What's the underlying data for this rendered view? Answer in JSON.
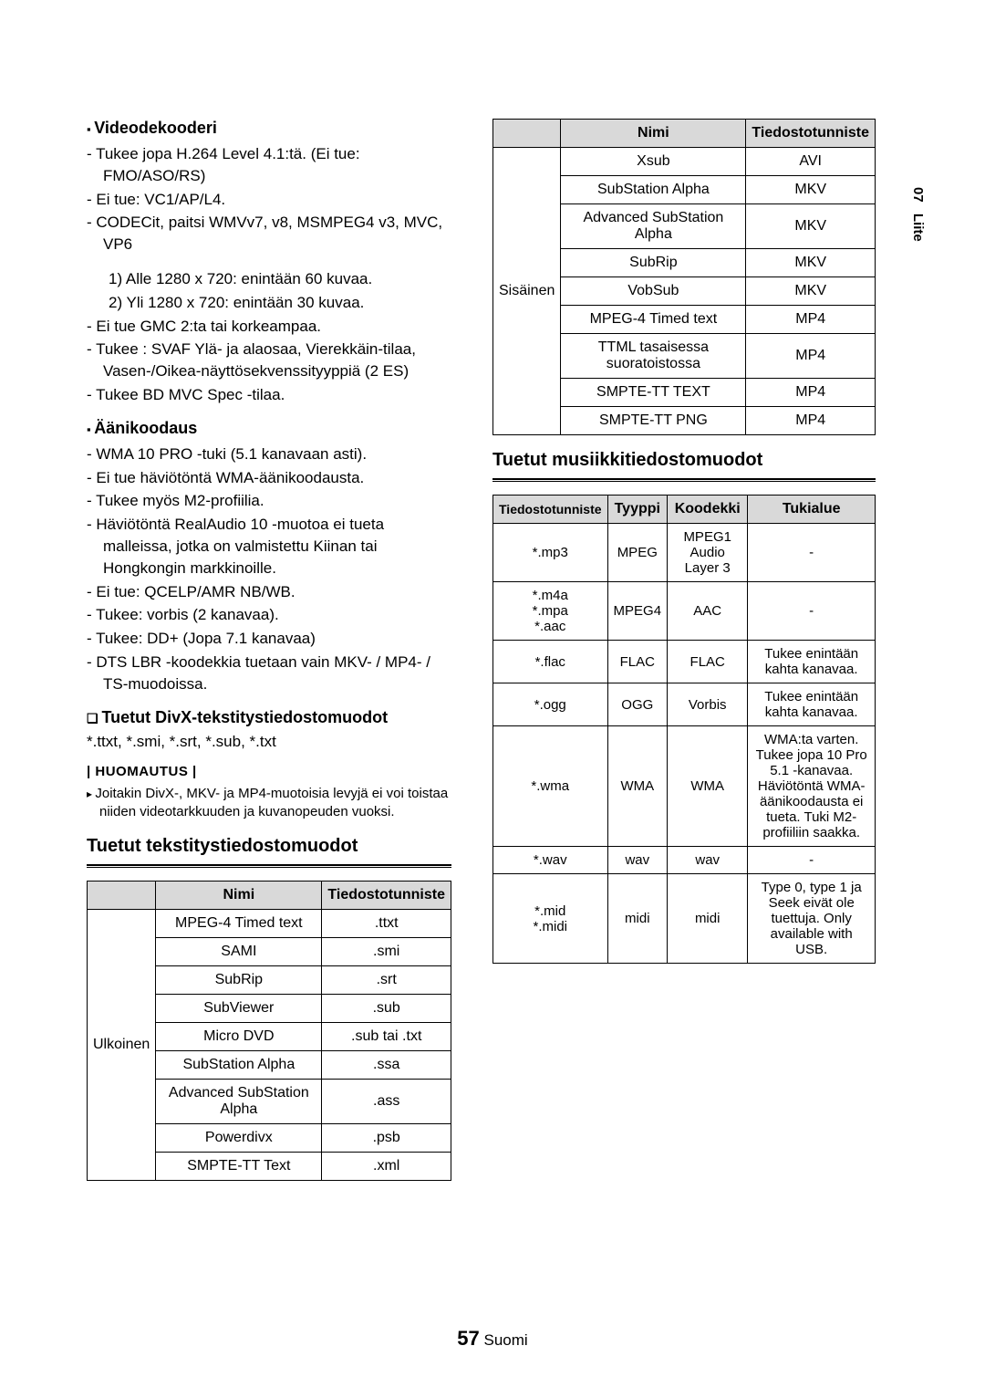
{
  "sidetab": {
    "num": "07",
    "label": "Liite"
  },
  "left": {
    "videoHead": "Videodekooderi",
    "videoItems": [
      "Tukee jopa H.264 Level 4.1:tä. (Ei tue: FMO/ASO/RS)",
      "Ei tue: VC1/AP/L4.",
      "CODECit, paitsi WMVv7, v8, MSMPEG4 v3, MVC, VP6"
    ],
    "videoSub": [
      "1) Alle 1280 x 720: enintään 60 kuvaa.",
      "2) Yli 1280 x 720: enintään 30 kuvaa."
    ],
    "videoItems2": [
      "Ei tue GMC 2:ta tai korkeampaa.",
      "Tukee : SVAF Ylä- ja alaosaa, Vierekkäin-tilaa, Vasen-/Oikea-näyttösekvenssityyppiä (2 ES)",
      "Tukee BD MVC Spec -tilaa."
    ],
    "audioHead": "Äänikoodaus",
    "audioItems": [
      "WMA 10 PRO -tuki (5.1 kanavaan asti).",
      "Ei tue häviötöntä WMA-äänikoodausta.",
      "Tukee myös M2-profiilia.",
      "Häviötöntä RealAudio 10 -muotoa ei tueta malleissa, jotka on valmistettu Kiinan tai Hongkongin markkinoille.",
      "Ei tue: QCELP/AMR NB/WB.",
      "Tukee: vorbis (2 kanavaa).",
      "Tukee: DD+ (Jopa 7.1 kanavaa)",
      "DTS LBR -koodekkia tuetaan vain MKV- / MP4- / TS-muodoissa."
    ],
    "divxHead": "Tuetut DivX-tekstitystiedostomuodot",
    "divxLine": "*.ttxt, *.smi, *.srt, *.sub, *.txt",
    "noteLabel": "| HUOMAUTUS |",
    "noteText": "Joitakin DivX-, MKV- ja MP4-muotoisia levyjä ei voi toistaa niiden videotarkkuuden ja kuvanopeuden vuoksi.",
    "subTitle": "Tuetut tekstitystiedostomuodot",
    "t1head": {
      "c1": "",
      "c2": "Nimi",
      "c3": "Tiedostotunniste"
    },
    "t1rowspan": "Ulkoinen",
    "t1rows": [
      {
        "n": "MPEG-4 Timed text",
        "e": ".ttxt"
      },
      {
        "n": "SAMI",
        "e": ".smi"
      },
      {
        "n": "SubRip",
        "e": ".srt"
      },
      {
        "n": "SubViewer",
        "e": ".sub"
      },
      {
        "n": "Micro DVD",
        "e": ".sub tai .txt"
      },
      {
        "n": "SubStation Alpha",
        "e": ".ssa"
      },
      {
        "n": "Advanced SubStation Alpha",
        "e": ".ass"
      },
      {
        "n": "Powerdivx",
        "e": ".psb"
      },
      {
        "n": "SMPTE-TT Text",
        "e": ".xml"
      }
    ]
  },
  "right": {
    "t2head": {
      "c1": "",
      "c2": "Nimi",
      "c3": "Tiedostotunniste"
    },
    "t2rowspan": "Sisäinen",
    "t2rows": [
      {
        "n": "Xsub",
        "e": "AVI"
      },
      {
        "n": "SubStation Alpha",
        "e": "MKV"
      },
      {
        "n": "Advanced SubStation Alpha",
        "e": "MKV"
      },
      {
        "n": "SubRip",
        "e": "MKV"
      },
      {
        "n": "VobSub",
        "e": "MKV"
      },
      {
        "n": "MPEG-4 Timed text",
        "e": "MP4"
      },
      {
        "n": "TTML tasaisessa suoratoistossa",
        "e": "MP4"
      },
      {
        "n": "SMPTE-TT TEXT",
        "e": "MP4"
      },
      {
        "n": "SMPTE-TT PNG",
        "e": "MP4"
      }
    ],
    "musicTitle": "Tuetut musiikkitiedostomuodot",
    "musichead": {
      "c1": "Tiedostotunniste",
      "c2": "Tyyppi",
      "c3": "Koodekki",
      "c4": "Tukialue"
    },
    "musicrows": [
      {
        "a": "*.mp3",
        "b": "MPEG",
        "c": "MPEG1 Audio Layer 3",
        "d": "-"
      },
      {
        "a": "*.m4a\n*.mpa\n*.aac",
        "b": "MPEG4",
        "c": "AAC",
        "d": "-"
      },
      {
        "a": "*.flac",
        "b": "FLAC",
        "c": "FLAC",
        "d": "Tukee enintään kahta kanavaa."
      },
      {
        "a": "*.ogg",
        "b": "OGG",
        "c": "Vorbis",
        "d": "Tukee enintään kahta kanavaa."
      },
      {
        "a": "*.wma",
        "b": "WMA",
        "c": "WMA",
        "d": "WMA:ta varten. Tukee jopa 10 Pro 5.1 -kanavaa. Häviötöntä WMA-äänikoodausta ei tueta. Tuki M2-profiiliin saakka."
      },
      {
        "a": "*.wav",
        "b": "wav",
        "c": "wav",
        "d": "-"
      },
      {
        "a": "*.mid\n*.midi",
        "b": "midi",
        "c": "midi",
        "d": "Type 0, type 1 ja Seek eivät ole tuettuja. Only available with USB."
      }
    ]
  },
  "pageNum": "57",
  "pageLang": "Suomi"
}
